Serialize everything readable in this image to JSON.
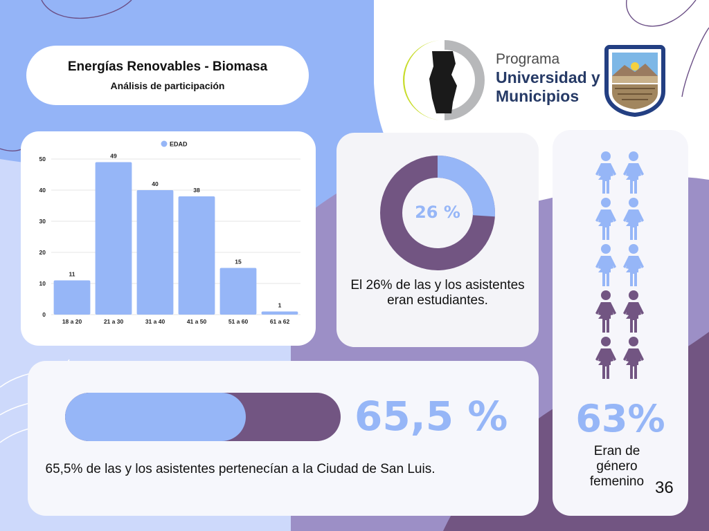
{
  "header": {
    "title": "Energías Renovables - Biomasa",
    "subtitle": "Análisis de participación"
  },
  "logo": {
    "line1": "Programa",
    "line2": "Universidad y",
    "line3": "Municipios"
  },
  "colors": {
    "accent_blue": "#96b6f7",
    "accent_purple": "#725582",
    "background_blue": "#94b4f7"
  },
  "chart_data": {
    "type": "bar",
    "legend": [
      "EDAD"
    ],
    "legend_placement": "top-center",
    "categories": [
      "18 a 20",
      "21 a 30",
      "31 a 40",
      "41 a 50",
      "51 a 60",
      "61 a 62"
    ],
    "series": [
      {
        "name": "EDAD",
        "values": [
          11,
          49,
          40,
          38,
          15,
          1
        ]
      }
    ],
    "ylim": [
      0,
      50
    ],
    "yticks": [
      0,
      10,
      20,
      30,
      40,
      50
    ],
    "grid": true,
    "data_labels": true
  },
  "students": {
    "percent": 26,
    "label": "26 %",
    "caption": "El 26% de las y los asistentes eran estudiantes."
  },
  "city": {
    "percent": 65.5,
    "label": "65,5 %",
    "caption": "65,5% de las y los asistentes pertenecían a la Ciudad de San Luis."
  },
  "gender": {
    "label": "63%",
    "caption": "Eran de género femenino",
    "icons": {
      "total": 10,
      "highlighted": 6,
      "icon": "woman-icon"
    }
  },
  "page_number": "36"
}
